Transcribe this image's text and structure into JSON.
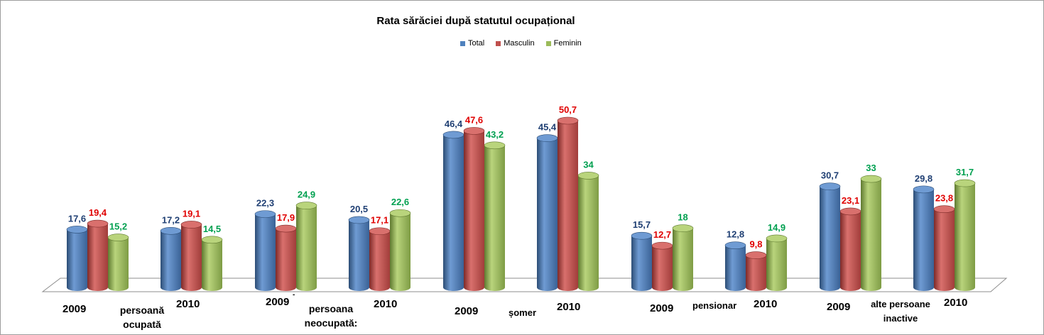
{
  "chart_data": {
    "type": "bar",
    "title": "Rata sărăciei după statutul ocupațional",
    "legend": [
      {
        "name": "Total",
        "color": "#4f81bd",
        "labelColor": "#1f3f73"
      },
      {
        "name": "Masculin",
        "color": "#c0504d",
        "labelColor": "#e00000"
      },
      {
        "name": "Feminin",
        "color": "#9bbb59",
        "labelColor": "#00a050"
      }
    ],
    "categories": [
      "2009",
      "2010",
      "2009",
      "2010",
      "2009",
      "2010",
      "2009",
      "2010",
      "2009",
      "2010"
    ],
    "groups": [
      "persoană ocupată",
      "persoana neocupată:",
      "șomer",
      "pensionar",
      "alte persoane inactive"
    ],
    "series": [
      {
        "name": "Total",
        "values": [
          17.6,
          17.2,
          22.3,
          20.5,
          46.4,
          45.4,
          15.7,
          12.8,
          30.7,
          29.8
        ],
        "labels": [
          "17,6",
          "17,2",
          "22,3",
          "20,5",
          "46,4",
          "45,4",
          "15,7",
          "12,8",
          "30,7",
          "29,8"
        ]
      },
      {
        "name": "Masculin",
        "values": [
          19.4,
          19.1,
          17.9,
          17.1,
          47.6,
          50.7,
          12.7,
          9.8,
          23.1,
          23.8
        ],
        "labels": [
          "19,4",
          "19,1",
          "17,9",
          "17,1",
          "47,6",
          "50,7",
          "12,7",
          "9,8",
          "23,1",
          "23,8"
        ]
      },
      {
        "name": "Feminin",
        "values": [
          15.2,
          14.5,
          24.9,
          22.6,
          43.2,
          34,
          18,
          14.9,
          33,
          31.7
        ],
        "labels": [
          "15,2",
          "14,5",
          "24,9",
          "22,6",
          "43,2",
          "34",
          "18",
          "14,9",
          "33",
          "31,7"
        ]
      }
    ],
    "ylim": [
      0,
      55
    ],
    "grid": false,
    "legend_position": "top"
  },
  "misc": {
    "stray_mark": "-"
  }
}
